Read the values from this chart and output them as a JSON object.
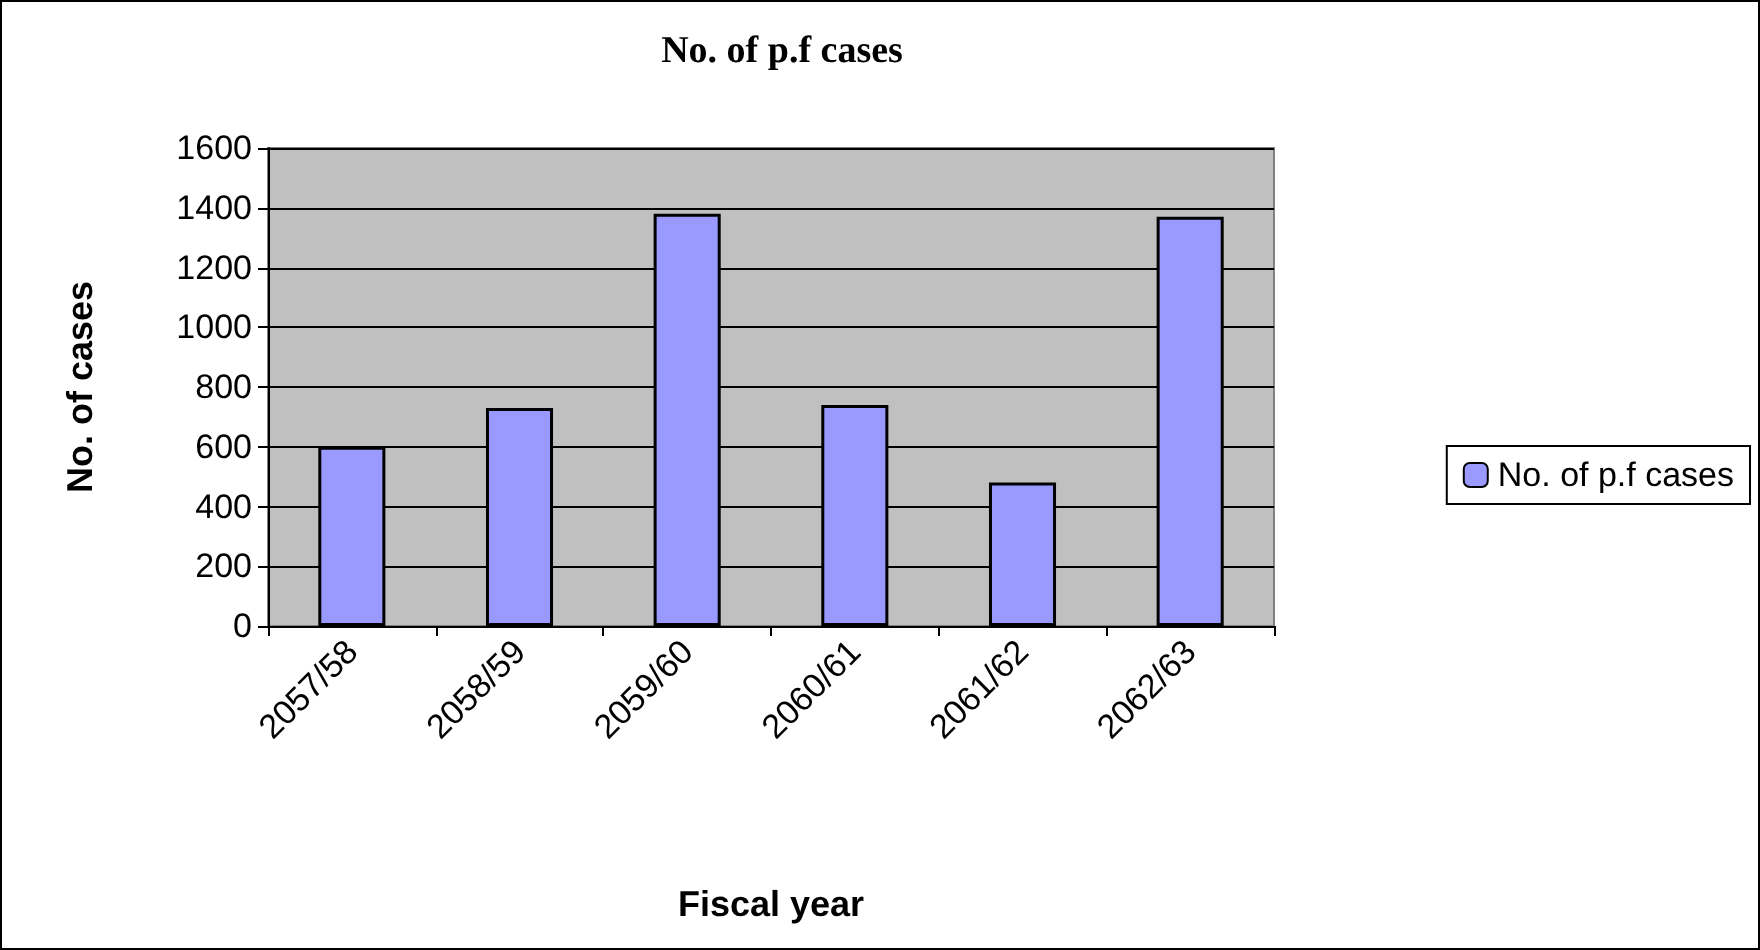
{
  "chart_data": {
    "type": "bar",
    "title": "No. of p.f cases",
    "xlabel": "Fiscal year",
    "ylabel": "No. of cases",
    "categories": [
      "2057/58",
      "2058/59",
      "2059/60",
      "2060/61",
      "2061/62",
      "2062/63"
    ],
    "series": [
      {
        "name": "No. of p.f cases",
        "color": "#9999ff",
        "values": [
          600,
          730,
          1380,
          740,
          480,
          1370
        ]
      }
    ],
    "ylim": [
      0,
      1600
    ],
    "yticks": [
      0,
      200,
      400,
      600,
      800,
      1000,
      1200,
      1400,
      1600
    ],
    "grid": "y",
    "legend": "right"
  }
}
